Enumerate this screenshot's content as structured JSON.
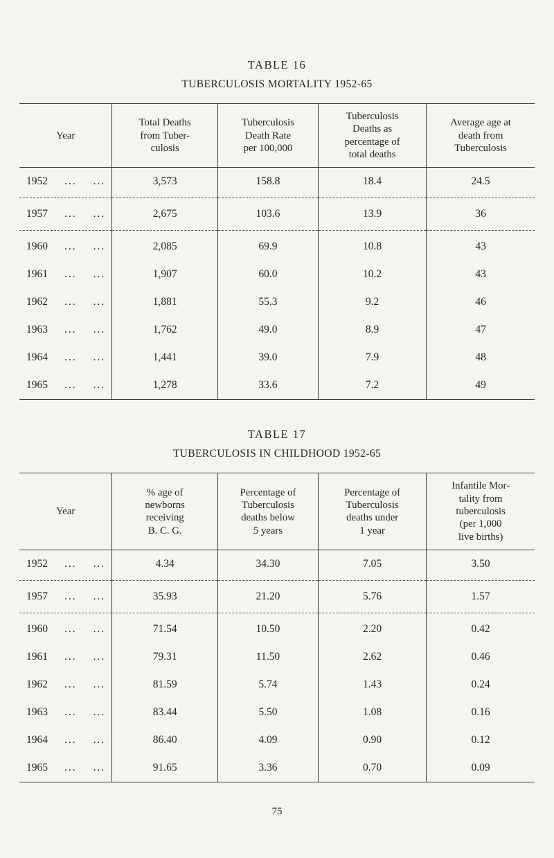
{
  "page": {
    "number": "75"
  },
  "misc": {
    "leader": "..."
  },
  "table16": {
    "title": "TABLE 16",
    "subtitle": "TUBERCULOSIS MORTALITY 1952-65",
    "headers": [
      "Year",
      "Total Deaths\nfrom Tuber-\nculosis",
      "Tuberculosis\nDeath Rate\nper 100,000",
      "Tuberculosis\nDeaths as\npercentage of\ntotal deaths",
      "Average age at\ndeath from\nTuberculosis"
    ],
    "rows": [
      {
        "year": "1952",
        "values": [
          "3,573",
          "158.8",
          "18.4",
          "24.5"
        ]
      },
      {
        "year": "1957",
        "values": [
          "2,675",
          "103.6",
          "13.9",
          "36"
        ]
      },
      {
        "year": "1960",
        "values": [
          "2,085",
          "69.9",
          "10.8",
          "43"
        ]
      },
      {
        "year": "1961",
        "values": [
          "1,907",
          "60.0",
          "10.2",
          "43"
        ]
      },
      {
        "year": "1962",
        "values": [
          "1,881",
          "55.3",
          "9.2",
          "46"
        ]
      },
      {
        "year": "1963",
        "values": [
          "1,762",
          "49.0",
          "8.9",
          "47"
        ]
      },
      {
        "year": "1964",
        "values": [
          "1,441",
          "39.0",
          "7.9",
          "48"
        ]
      },
      {
        "year": "1965",
        "values": [
          "1,278",
          "33.6",
          "7.2",
          "49"
        ]
      }
    ]
  },
  "table17": {
    "title": "TABLE 17",
    "subtitle": "TUBERCULOSIS IN CHILDHOOD 1952-65",
    "headers": [
      "Year",
      "% age of\nnewborns\nreceiving\nB. C. G.",
      "Percentage of\nTuberculosis\ndeaths below\n5 years",
      "Percentage of\nTuberculosis\ndeaths under\n1 year",
      "Infantile Mor-\ntality from\ntuberculosis\n(per 1,000\nlive births)"
    ],
    "rows": [
      {
        "year": "1952",
        "values": [
          "4.34",
          "34.30",
          "7.05",
          "3.50"
        ]
      },
      {
        "year": "1957",
        "values": [
          "35.93",
          "21.20",
          "5.76",
          "1.57"
        ]
      },
      {
        "year": "1960",
        "values": [
          "71.54",
          "10.50",
          "2.20",
          "0.42"
        ]
      },
      {
        "year": "1961",
        "values": [
          "79.31",
          "11.50",
          "2.62",
          "0.46"
        ]
      },
      {
        "year": "1962",
        "values": [
          "81.59",
          "5.74",
          "1.43",
          "0.24"
        ]
      },
      {
        "year": "1963",
        "values": [
          "83.44",
          "5.50",
          "1.08",
          "0.16"
        ]
      },
      {
        "year": "1964",
        "values": [
          "86.40",
          "4.09",
          "0.90",
          "0.12"
        ]
      },
      {
        "year": "1965",
        "values": [
          "91.65",
          "3.36",
          "0.70",
          "0.09"
        ]
      }
    ]
  }
}
